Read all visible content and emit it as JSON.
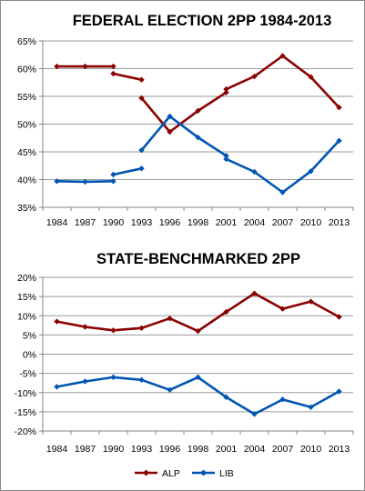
{
  "chart_data": [
    {
      "type": "line",
      "title": "FEDERAL ELECTION 2PP 1984-2013",
      "categories": [
        "1984",
        "1987",
        "1990",
        "1993",
        "1996",
        "1998",
        "2001",
        "2004",
        "2007",
        "2010",
        "2013"
      ],
      "y_ticks": [
        "65%",
        "60%",
        "55%",
        "50%",
        "45%",
        "40%",
        "35%"
      ],
      "ylim": [
        35,
        65
      ],
      "grid": true,
      "series": [
        {
          "name": "ALP",
          "color": "#8b0000",
          "segments": [
            {
              "points": [
                [
                  0,
                  60.4
                ],
                [
                  1,
                  60.4
                ],
                [
                  2,
                  60.4
                ]
              ]
            },
            {
              "points": [
                [
                  2,
                  59.1
                ],
                [
                  3,
                  58.0
                ]
              ]
            },
            {
              "points": [
                [
                  3,
                  54.7
                ],
                [
                  4,
                  48.6
                ],
                [
                  5,
                  52.4
                ],
                [
                  6,
                  55.7
                ],
                [
                  6,
                  56.3
                ],
                [
                  7,
                  58.6
                ],
                [
                  8,
                  62.3
                ],
                [
                  9,
                  58.5
                ],
                [
                  10,
                  53.0
                ]
              ]
            }
          ]
        },
        {
          "name": "LIB",
          "color": "#0055b3",
          "segments": [
            {
              "points": [
                [
                  0,
                  39.7
                ],
                [
                  1,
                  39.6
                ],
                [
                  2,
                  39.7
                ]
              ]
            },
            {
              "points": [
                [
                  2,
                  40.9
                ],
                [
                  3,
                  42.0
                ]
              ]
            },
            {
              "points": [
                [
                  3,
                  45.3
                ],
                [
                  4,
                  51.4
                ],
                [
                  5,
                  47.6
                ],
                [
                  6,
                  44.3
                ],
                [
                  6,
                  43.7
                ],
                [
                  7,
                  41.4
                ],
                [
                  8,
                  37.7
                ],
                [
                  9,
                  41.5
                ],
                [
                  10,
                  47.0
                ]
              ]
            }
          ]
        }
      ]
    },
    {
      "type": "line",
      "title": "STATE-BENCHMARKED 2PP",
      "categories": [
        "1984",
        "1987",
        "1990",
        "1993",
        "1996",
        "1998",
        "2001",
        "2004",
        "2007",
        "2010",
        "2013"
      ],
      "y_ticks": [
        "20%",
        "15%",
        "10%",
        "5%",
        "0%",
        "-5%",
        "-10%",
        "-15%",
        "-20%"
      ],
      "ylim": [
        -20,
        20
      ],
      "grid": true,
      "legend": "bottom",
      "series": [
        {
          "name": "ALP",
          "color": "#8b0000",
          "values": [
            8.5,
            7.1,
            6.2,
            6.8,
            9.3,
            6.0,
            11.0,
            15.8,
            11.8,
            13.7,
            9.7
          ]
        },
        {
          "name": "LIB",
          "color": "#0055b3",
          "values": [
            -8.5,
            -7.1,
            -6.0,
            -6.7,
            -9.3,
            -6.0,
            -11.2,
            -15.6,
            -11.8,
            -13.8,
            -9.7
          ]
        }
      ]
    }
  ],
  "legend": {
    "items": [
      {
        "label": "ALP",
        "color": "#8b0000"
      },
      {
        "label": "LIB",
        "color": "#0055b3"
      }
    ]
  }
}
